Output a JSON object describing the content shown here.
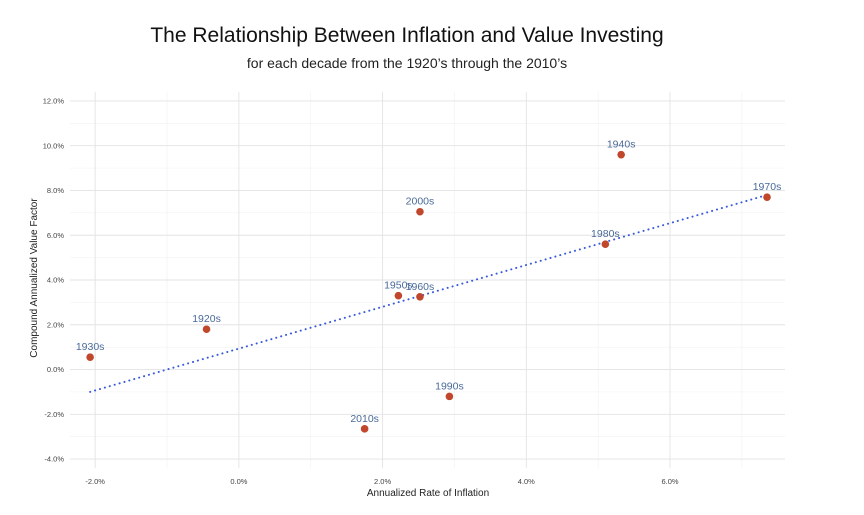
{
  "chart_data": {
    "type": "scatter",
    "title": "The Relationship Between Inflation and Value Investing",
    "subtitle": "for each decade from the 1920’s through the 2010’s",
    "xlabel": "Annualized Rate of Inflation",
    "ylabel": "Compound Annualized Value Factor",
    "xlim": [
      -2.35,
      7.6
    ],
    "ylim": [
      -4.4,
      12.4
    ],
    "x_ticks": [
      -2,
      0,
      2,
      4,
      6
    ],
    "x_tick_labels": [
      "-2.0%",
      "0.0%",
      "2.0%",
      "4.0%",
      "6.0%"
    ],
    "y_ticks": [
      -4,
      -2,
      0,
      2,
      4,
      6,
      8,
      10,
      12
    ],
    "y_tick_labels": [
      "-4.0%",
      "-2.0%",
      "0.0%",
      "2.0%",
      "4.0%",
      "6.0%",
      "8.0%",
      "10.0%",
      "12.0%"
    ],
    "grid": true,
    "points": [
      {
        "label": "1920s",
        "x": -0.45,
        "y": 1.8
      },
      {
        "label": "1930s",
        "x": -2.07,
        "y": 0.55
      },
      {
        "label": "1940s",
        "x": 5.32,
        "y": 9.6
      },
      {
        "label": "1950s",
        "x": 2.22,
        "y": 3.3
      },
      {
        "label": "1960s",
        "x": 2.52,
        "y": 3.25
      },
      {
        "label": "1970s",
        "x": 7.35,
        "y": 7.7
      },
      {
        "label": "1980s",
        "x": 5.1,
        "y": 5.6
      },
      {
        "label": "1990s",
        "x": 2.93,
        "y": -1.2
      },
      {
        "label": "2000s",
        "x": 2.52,
        "y": 7.05
      },
      {
        "label": "2010s",
        "x": 1.75,
        "y": -2.65
      }
    ],
    "trendline": {
      "style": "dotted",
      "color": "#3a5bd9",
      "x": [
        -2.07,
        7.35
      ],
      "y": [
        -1.0,
        7.8
      ]
    },
    "point_color": "#c0472c"
  }
}
